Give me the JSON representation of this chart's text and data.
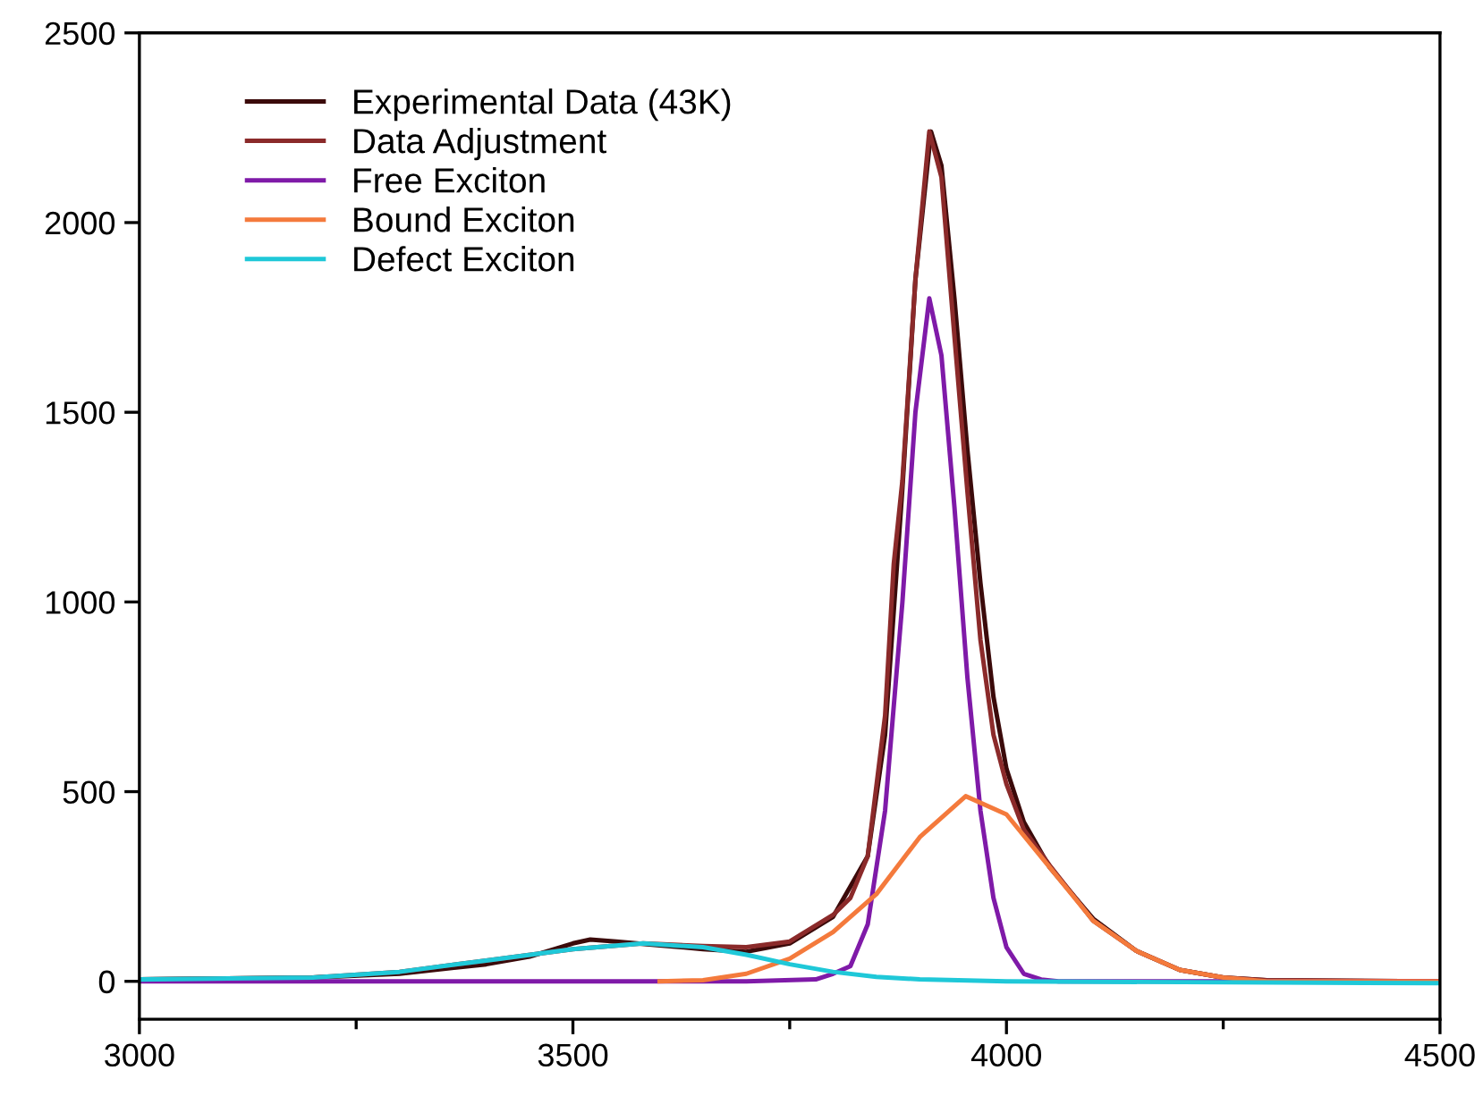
{
  "chart_data": {
    "type": "line",
    "xlim": [
      3000,
      4500
    ],
    "ylim": [
      -100,
      2500
    ],
    "xticks": [
      3000,
      {
        "value": 3250,
        "label": null
      },
      3500,
      {
        "value": 3750,
        "label": null
      },
      4000,
      {
        "value": 4250,
        "label": null
      },
      4500
    ],
    "yticks": [
      0,
      500,
      1000,
      1500,
      2000,
      2500
    ],
    "legend": "top left",
    "grid": false,
    "marker": "none",
    "line_style": "solid",
    "series": [
      {
        "name": "Experimental Data (43K)",
        "color": "#3b0a0a",
        "x": [
          3000,
          3200,
          3300,
          3400,
          3450,
          3500,
          3520,
          3550,
          3600,
          3650,
          3700,
          3750,
          3800,
          3840,
          3860,
          3880,
          3895,
          3913,
          3925,
          3940,
          3955,
          3970,
          3985,
          4000,
          4020,
          4050,
          4100,
          4150,
          4200,
          4250,
          4300,
          4500
        ],
        "values": [
          5,
          10,
          20,
          45,
          65,
          100,
          110,
          105,
          95,
          85,
          78,
          100,
          170,
          330,
          650,
          1300,
          1850,
          2240,
          2150,
          1800,
          1400,
          1050,
          750,
          560,
          420,
          300,
          165,
          80,
          30,
          10,
          3,
          0
        ]
      },
      {
        "name": "Data Adjustment",
        "color": "#8b2a2a",
        "x": [
          3000,
          3200,
          3300,
          3400,
          3500,
          3581,
          3650,
          3700,
          3750,
          3800,
          3820,
          3840,
          3860,
          3870,
          3880,
          3895,
          3911,
          3925,
          3940,
          3955,
          3970,
          3985,
          4000,
          4020,
          4050,
          4100,
          4150,
          4200,
          4250,
          4300,
          4500
        ],
        "values": [
          5,
          10,
          25,
          55,
          85,
          100,
          93,
          90,
          105,
          175,
          220,
          330,
          700,
          1100,
          1320,
          1850,
          2240,
          2120,
          1700,
          1290,
          900,
          650,
          520,
          400,
          305,
          160,
          80,
          30,
          10,
          3,
          0
        ]
      },
      {
        "name": "Free Exciton",
        "color": "#7f1aa8",
        "x": [
          3000,
          3700,
          3780,
          3800,
          3820,
          3840,
          3860,
          3880,
          3895,
          3911,
          3925,
          3940,
          3955,
          3970,
          3985,
          4000,
          4020,
          4040,
          4060,
          4500
        ],
        "values": [
          0,
          0,
          5,
          20,
          40,
          150,
          450,
          1000,
          1500,
          1800,
          1650,
          1250,
          800,
          450,
          220,
          90,
          20,
          5,
          0,
          0
        ]
      },
      {
        "name": "Bound Exciton",
        "color": "#f47a3c",
        "x": [
          3600,
          3650,
          3700,
          3750,
          3800,
          3850,
          3900,
          3953,
          4000,
          4050,
          4100,
          4150,
          4200,
          4250,
          4300,
          4500
        ],
        "values": [
          0,
          3,
          20,
          60,
          130,
          230,
          380,
          488,
          440,
          300,
          160,
          80,
          30,
          10,
          0,
          0
        ]
      },
      {
        "name": "Defect Exciton",
        "color": "#1fc8d8",
        "x": [
          3000,
          3200,
          3300,
          3400,
          3500,
          3581,
          3650,
          3700,
          3750,
          3800,
          3850,
          3900,
          4000,
          4500
        ],
        "values": [
          5,
          10,
          25,
          55,
          85,
          100,
          90,
          70,
          45,
          25,
          12,
          5,
          0,
          -5
        ]
      }
    ]
  }
}
